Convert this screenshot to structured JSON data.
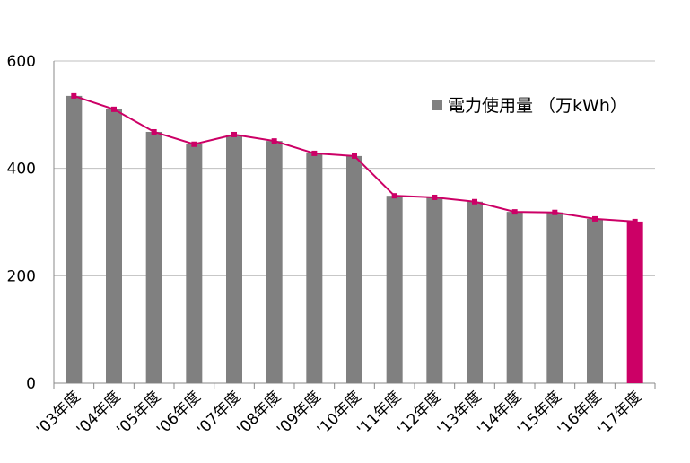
{
  "chart_data": {
    "type": "bar_line",
    "categories": [
      "'03年度",
      "'04年度",
      "'05年度",
      "'06年度",
      "'07年度",
      "'08年度",
      "'09年度",
      "'10年度",
      "'11年度",
      "'12年度",
      "'13年度",
      "'14年度",
      "'15年度",
      "'16年度",
      "'17年度"
    ],
    "series": [
      {
        "name": "電力使用量 （万kWh）",
        "color": "#808080",
        "values": [
          535,
          510,
          468,
          445,
          463,
          451,
          428,
          423,
          349,
          346,
          338,
          319,
          318,
          306,
          301
        ]
      }
    ],
    "bar_colors": [
      "#808080",
      "#808080",
      "#808080",
      "#808080",
      "#808080",
      "#808080",
      "#808080",
      "#808080",
      "#808080",
      "#808080",
      "#808080",
      "#808080",
      "#808080",
      "#808080",
      "#cc0066"
    ],
    "line_color": "#cc0066",
    "ylim": [
      0,
      600
    ],
    "yticks": [
      0,
      200,
      400,
      600
    ],
    "grid": true
  }
}
